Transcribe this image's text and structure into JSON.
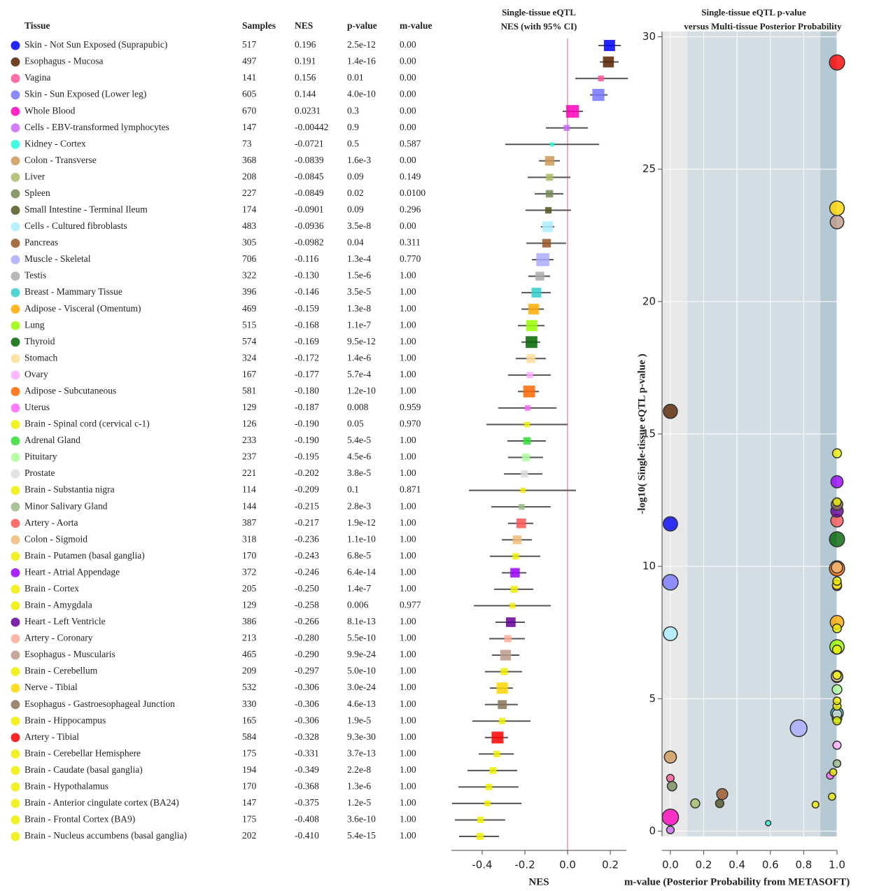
{
  "table": {
    "headers": [
      "Tissue",
      "Samples",
      "NES",
      "p-value",
      "m-value"
    ]
  },
  "chart_data": [
    {
      "type": "forest",
      "title": [
        "Single-tissue eQTL",
        "NES (with 95% CI)"
      ],
      "xlabel": "NES",
      "categories": [
        "Skin - Not Sun Exposed (Suprapubic)",
        "Esophagus - Mucosa",
        "Vagina",
        "Skin - Sun Exposed (Lower leg)",
        "Whole Blood",
        "Cells - EBV-transformed lymphocytes",
        "Kidney - Cortex",
        "Colon - Transverse",
        "Liver",
        "Spleen",
        "Small Intestine - Terminal Ileum",
        "Cells - Cultured fibroblasts",
        "Pancreas",
        "Muscle - Skeletal",
        "Testis",
        "Breast - Mammary Tissue",
        "Adipose - Visceral (Omentum)",
        "Lung",
        "Thyroid",
        "Stomach",
        "Ovary",
        "Adipose - Subcutaneous",
        "Uterus",
        "Brain - Spinal cord (cervical c-1)",
        "Adrenal Gland",
        "Pituitary",
        "Prostate",
        "Brain - Substantia nigra",
        "Minor Salivary Gland",
        "Artery - Aorta",
        "Colon - Sigmoid",
        "Brain - Putamen (basal ganglia)",
        "Heart - Atrial Appendage",
        "Brain - Cortex",
        "Brain - Amygdala",
        "Heart - Left Ventricle",
        "Artery - Coronary",
        "Esophagus - Muscularis",
        "Brain - Cerebellum",
        "Nerve - Tibial",
        "Esophagus - Gastroesophageal Junction",
        "Brain - Hippocampus",
        "Artery - Tibial",
        "Brain - Cerebellar Hemisphere",
        "Brain - Caudate (basal ganglia)",
        "Brain - Hypothalamus",
        "Brain - Anterior cingulate cortex (BA24)",
        "Brain - Frontal Cortex (BA9)",
        "Brain - Nucleus accumbens (basal ganglia)"
      ],
      "colors": [
        "#0000FF",
        "#552200",
        "#FF5599",
        "#7777FF",
        "#FF00BB",
        "#CC66FF",
        "#22FFDD",
        "#CC9955",
        "#AABB66",
        "#778855",
        "#555522",
        "#AAEEFF",
        "#995522",
        "#AAAAFF",
        "#AAAAAA",
        "#33CCCC",
        "#FFAA00",
        "#99FF00",
        "#006600",
        "#FFDD99",
        "#FFAAFF",
        "#FF6600",
        "#FF66FF",
        "#EEEE00",
        "#33DD33",
        "#AAFF99",
        "#DDDDDD",
        "#EEEE00",
        "#99BB88",
        "#FF5555",
        "#EEBB77",
        "#EEEE00",
        "#9900FF",
        "#EEEE00",
        "#EEEE00",
        "#660099",
        "#FFAA99",
        "#BB9988",
        "#EEEE00",
        "#FFD700",
        "#8B7355",
        "#EEEE00",
        "#FF0000",
        "#EEEE00",
        "#EEEE00",
        "#EEEE00",
        "#EEEE00",
        "#EEEE00",
        "#EEEE00"
      ],
      "samples": [
        517,
        497,
        141,
        605,
        670,
        147,
        73,
        368,
        208,
        227,
        174,
        483,
        305,
        706,
        322,
        396,
        469,
        515,
        574,
        324,
        167,
        581,
        129,
        126,
        233,
        237,
        221,
        114,
        144,
        387,
        318,
        170,
        372,
        205,
        129,
        386,
        213,
        465,
        209,
        532,
        330,
        165,
        584,
        175,
        194,
        170,
        147,
        175,
        202
      ],
      "values": [
        0.196,
        0.191,
        0.156,
        0.144,
        0.0231,
        -0.00442,
        -0.0721,
        -0.0839,
        -0.0845,
        -0.0849,
        -0.0901,
        -0.0936,
        -0.0982,
        -0.116,
        -0.13,
        -0.146,
        -0.159,
        -0.168,
        -0.169,
        -0.172,
        -0.177,
        -0.18,
        -0.187,
        -0.19,
        -0.19,
        -0.195,
        -0.202,
        -0.209,
        -0.215,
        -0.217,
        -0.236,
        -0.243,
        -0.246,
        -0.25,
        -0.258,
        -0.266,
        -0.28,
        -0.29,
        -0.297,
        -0.306,
        -0.306,
        -0.306,
        -0.328,
        -0.331,
        -0.349,
        -0.368,
        -0.375,
        -0.408,
        -0.41
      ],
      "value_labels": [
        "0.196",
        "0.191",
        "0.156",
        "0.144",
        "0.0231",
        "-0.00442",
        "-0.0721",
        "-0.0839",
        "-0.0845",
        "-0.0849",
        "-0.0901",
        "-0.0936",
        "-0.0982",
        "-0.116",
        "-0.130",
        "-0.146",
        "-0.159",
        "-0.168",
        "-0.169",
        "-0.172",
        "-0.177",
        "-0.180",
        "-0.187",
        "-0.190",
        "-0.190",
        "-0.195",
        "-0.202",
        "-0.209",
        "-0.215",
        "-0.217",
        "-0.236",
        "-0.243",
        "-0.246",
        "-0.250",
        "-0.258",
        "-0.266",
        "-0.280",
        "-0.290",
        "-0.297",
        "-0.306",
        "-0.306",
        "-0.306",
        "-0.328",
        "-0.331",
        "-0.349",
        "-0.368",
        "-0.375",
        "-0.408",
        "-0.410"
      ],
      "ci_low": [
        0.144,
        0.151,
        0.036,
        0.105,
        -0.023,
        -0.102,
        -0.292,
        -0.134,
        -0.187,
        -0.154,
        -0.197,
        -0.125,
        -0.193,
        -0.167,
        -0.184,
        -0.216,
        -0.216,
        -0.233,
        -0.216,
        -0.243,
        -0.279,
        -0.233,
        -0.325,
        -0.38,
        -0.282,
        -0.279,
        -0.298,
        -0.462,
        -0.357,
        -0.279,
        -0.308,
        -0.364,
        -0.308,
        -0.344,
        -0.439,
        -0.338,
        -0.367,
        -0.354,
        -0.387,
        -0.364,
        -0.387,
        -0.446,
        -0.387,
        -0.416,
        -0.469,
        -0.511,
        -0.541,
        -0.528,
        -0.508
      ],
      "ci_high": [
        0.249,
        0.239,
        0.282,
        0.187,
        0.072,
        0.095,
        0.148,
        -0.036,
        0.013,
        -0.02,
        0.016,
        -0.062,
        -0.007,
        -0.066,
        -0.082,
        -0.079,
        -0.111,
        -0.108,
        -0.128,
        -0.102,
        -0.079,
        -0.134,
        -0.052,
        0.0,
        -0.102,
        -0.115,
        -0.118,
        0.039,
        -0.079,
        -0.161,
        -0.167,
        -0.128,
        -0.193,
        -0.161,
        -0.079,
        -0.2,
        -0.2,
        -0.226,
        -0.213,
        -0.256,
        -0.233,
        -0.174,
        -0.279,
        -0.252,
        -0.236,
        -0.23,
        -0.216,
        -0.292,
        -0.321
      ],
      "p_values": [
        2.5e-12,
        1.4e-16,
        0.01,
        4e-10,
        0.3,
        0.9,
        0.5,
        0.0016,
        0.09,
        0.02,
        0.09,
        3.5e-08,
        0.04,
        0.00013,
        1.5e-06,
        3.5e-05,
        1.3e-08,
        1.1e-07,
        9.5e-12,
        1.4e-06,
        0.00057,
        1.2e-10,
        0.008,
        0.05,
        5.4e-05,
        4.5e-06,
        3.8e-05,
        0.1,
        0.0028,
        1.9e-12,
        1.1e-10,
        6.8e-05,
        6.4e-14,
        1.4e-07,
        0.006,
        8.1e-13,
        5.5e-10,
        9.9e-24,
        5e-10,
        3e-24,
        4.6e-13,
        1.9e-05,
        9.3e-30,
        3.7e-13,
        2.2e-08,
        1.3e-06,
        1.2e-05,
        3.6e-10,
        5.4e-15
      ],
      "p_value_labels": [
        "2.5e-12",
        "1.4e-16",
        "0.01",
        "4.0e-10",
        "0.3",
        "0.9",
        "0.5",
        "1.6e-3",
        "0.09",
        "0.02",
        "0.09",
        "3.5e-8",
        "0.04",
        "1.3e-4",
        "1.5e-6",
        "3.5e-5",
        "1.3e-8",
        "1.1e-7",
        "9.5e-12",
        "1.4e-6",
        "5.7e-4",
        "1.2e-10",
        "0.008",
        "0.05",
        "5.4e-5",
        "4.5e-6",
        "3.8e-5",
        "0.1",
        "2.8e-3",
        "1.9e-12",
        "1.1e-10",
        "6.8e-5",
        "6.4e-14",
        "1.4e-7",
        "0.006",
        "8.1e-13",
        "5.5e-10",
        "9.9e-24",
        "5.0e-10",
        "3.0e-24",
        "4.6e-13",
        "1.9e-5",
        "9.3e-30",
        "3.7e-13",
        "2.2e-8",
        "1.3e-6",
        "1.2e-5",
        "3.6e-10",
        "5.4e-15"
      ],
      "m_values": [
        0,
        0,
        0,
        0,
        0,
        0,
        0.587,
        0,
        0.149,
        0.01,
        0.296,
        0,
        0.311,
        0.77,
        1,
        1,
        1,
        1,
        1,
        1,
        1,
        1,
        0.959,
        0.97,
        1,
        1,
        1,
        0.871,
        1,
        1,
        1,
        1,
        1,
        1,
        0.977,
        1,
        1,
        1,
        1,
        1,
        1,
        1,
        1,
        1,
        1,
        1,
        1,
        1,
        1
      ],
      "m_value_labels": [
        "0.00",
        "0.00",
        "0.00",
        "0.00",
        "0.00",
        "0.00",
        "0.587",
        "0.00",
        "0.149",
        "0.0100",
        "0.296",
        "0.00",
        "0.311",
        "0.770",
        "1.00",
        "1.00",
        "1.00",
        "1.00",
        "1.00",
        "1.00",
        "1.00",
        "1.00",
        "0.959",
        "0.970",
        "1.00",
        "1.00",
        "1.00",
        "0.871",
        "1.00",
        "1.00",
        "1.00",
        "1.00",
        "1.00",
        "1.00",
        "0.977",
        "1.00",
        "1.00",
        "1.00",
        "1.00",
        "1.00",
        "1.00",
        "1.00",
        "1.00",
        "1.00",
        "1.00",
        "1.00",
        "1.00",
        "1.00",
        "1.00"
      ],
      "xlim": [
        -0.544,
        0.275
      ],
      "xticks": [
        -0.4,
        -0.2,
        {
          "value": 0,
          "label": "0.0"
        },
        0.2
      ],
      "reference_line": 0,
      "reference_color": "#ee8fb0"
    },
    {
      "type": "scatter",
      "title": [
        "Single-tissue eQTL p-value",
        "versus Multi-tissue Posterior Probability"
      ],
      "xlabel": "m-value (Posterior Probability from METASOFT)",
      "ylabel": "-log10( Single-tissue eQTL p-value )",
      "xlim": [
        -0.05,
        1.0
      ],
      "ylim": [
        -0.2,
        30.2
      ],
      "xticks": [
        {
          "value": 0,
          "label": "0.0"
        },
        0.2,
        0.4,
        0.6,
        0.8,
        {
          "value": 1,
          "label": "1.0"
        }
      ],
      "yticks": [
        0,
        5,
        10,
        15,
        20,
        25,
        30
      ],
      "grid": true,
      "regions": [
        {
          "xlim": [
            -0.05,
            0.1
          ],
          "color": "#e8e8e8"
        },
        {
          "xlim": [
            0.1,
            0.9
          ],
          "color": "#d3dde3"
        },
        {
          "xlim": [
            0.9,
            1.0
          ],
          "color": "#b6c8d2"
        }
      ]
    }
  ]
}
